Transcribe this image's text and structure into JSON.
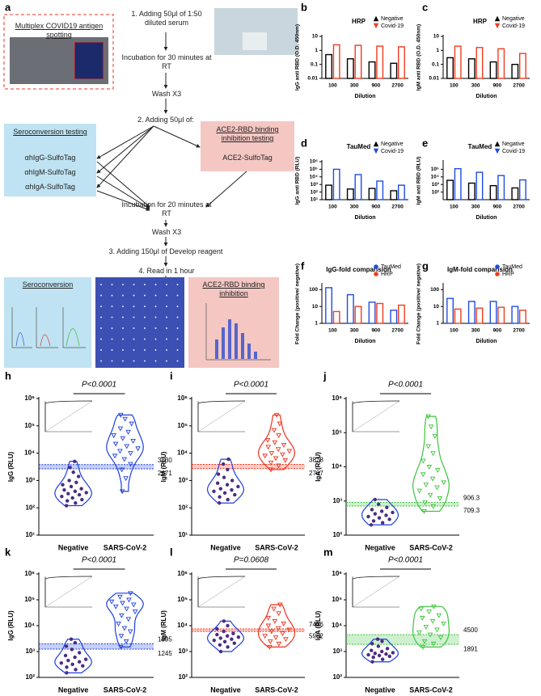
{
  "diagram": {
    "label": "a",
    "antigen_spotting": "Multiplex COVID19 antigen spotting",
    "step1": "1. Adding 50μl of 1:50 diluted serum",
    "incubation1": "Incubation for 30 minutes at RT",
    "wash1": "Wash X3",
    "step2": "2. Adding 50μl of:",
    "seroconversion_box": {
      "title": "Seroconversion testing",
      "reagents": [
        "αhIgG-SulfoTag",
        "αhIgM-SulfoTag",
        "αhIgA-SulfoTag"
      ]
    },
    "inhibition_box": {
      "title": "ACE2-RBD binding inhibition testing",
      "reagent": "ACE2-SulfoTag"
    },
    "incubation2": "Incubation for 20 minutes at RT",
    "wash2": "Wash X3",
    "step3": "3. Adding 150μl of Develop reagent",
    "step4": "4. Read in 1 hour",
    "result_seroconversion": "Seroconversion",
    "result_inhibition": "ACE2-RBD binding inhibition"
  },
  "chart_data": [
    {
      "type": "bar",
      "label": "b",
      "title": "HRP",
      "ylabel": "IgG anti RBD (O.D. 450nm)",
      "xlabel": "Dilution",
      "categories": [
        "100",
        "300",
        "900",
        "2700"
      ],
      "series": [
        {
          "name": "Negative",
          "color": "#000000",
          "values": [
            0.5,
            0.25,
            0.15,
            0.12
          ]
        },
        {
          "name": "Covid-19",
          "color": "#f03c1e",
          "values": [
            2.5,
            2.3,
            2.0,
            1.8
          ]
        }
      ],
      "log": true,
      "ylim": [
        0.01,
        10
      ],
      "yticks": [
        0.01,
        0.1,
        1,
        10
      ],
      "legend": "top-right",
      "marker": "triangle"
    },
    {
      "type": "bar",
      "label": "c",
      "title": "HRP",
      "ylabel": "IgM anti RBD (O.D. 450nm)",
      "xlabel": "Dilution",
      "categories": [
        "100",
        "300",
        "900",
        "2700"
      ],
      "series": [
        {
          "name": "Negative",
          "color": "#000000",
          "values": [
            0.3,
            0.25,
            0.15,
            0.1
          ]
        },
        {
          "name": "Covid-19",
          "color": "#f03c1e",
          "values": [
            2.0,
            1.6,
            1.3,
            0.6
          ]
        }
      ],
      "log": true,
      "ylim": [
        0.01,
        10
      ],
      "yticks": [
        0.01,
        0.1,
        1,
        10
      ],
      "legend": "top-right",
      "marker": "triangle"
    },
    {
      "type": "bar",
      "label": "d",
      "title": "TauMed",
      "ylabel": "IgG anti RBD (RLU)",
      "xlabel": "Dilution",
      "categories": [
        "100",
        "300",
        "900",
        "2700"
      ],
      "series": [
        {
          "name": "Negative",
          "color": "#000000",
          "values": [
            800,
            250,
            300,
            150
          ]
        },
        {
          "name": "Covid-19",
          "color": "#1f4de0",
          "values": [
            100000,
            20000,
            2800,
            800
          ]
        }
      ],
      "log": true,
      "ylim": [
        10,
        1000000
      ],
      "yticks": [
        {
          "value": 10,
          "label": "10¹"
        },
        {
          "value": 100,
          "label": "10²"
        },
        {
          "value": 1000,
          "label": "10³"
        },
        {
          "value": 10000,
          "label": "10⁴"
        },
        {
          "value": 100000,
          "label": "10⁵"
        },
        {
          "value": 1000000,
          "label": "10⁶"
        }
      ],
      "legend": "top-right",
      "marker": "triangle"
    },
    {
      "type": "bar",
      "label": "e",
      "title": "TauMed",
      "ylabel": "IgM anti RBD (RLU)",
      "xlabel": "Dilution",
      "categories": [
        "100",
        "300",
        "900",
        "2700"
      ],
      "series": [
        {
          "name": "Negative",
          "color": "#000000",
          "values": [
            3500,
            1500,
            700,
            350
          ]
        },
        {
          "name": "Covid-19",
          "color": "#1f4de0",
          "values": [
            120000,
            40000,
            15000,
            4000
          ]
        }
      ],
      "log": true,
      "ylim": [
        10,
        1000000
      ],
      "yticks": [
        {
          "value": 100,
          "label": "10²"
        },
        {
          "value": 1000,
          "label": "10³"
        },
        {
          "value": 10000,
          "label": "10⁴"
        },
        {
          "value": 100000,
          "label": "10⁵"
        }
      ],
      "legend": "top-right",
      "marker": "triangle"
    },
    {
      "type": "bar",
      "label": "f",
      "title": "IgG-fold comparision",
      "ylabel": "Fold Change (positive/ negative)",
      "xlabel": "Dilution",
      "categories": [
        "100",
        "300",
        "900",
        "2700"
      ],
      "series": [
        {
          "name": "TauMed",
          "color": "#1f4de0",
          "values": [
            130,
            50,
            18,
            6
          ]
        },
        {
          "name": "HRP",
          "color": "#f03c1e",
          "values": [
            5,
            10,
            15,
            12
          ]
        }
      ],
      "log": true,
      "ylim": [
        1,
        200
      ],
      "yticks": [
        1,
        10,
        100
      ],
      "legend": "top-right",
      "marker": "circle"
    },
    {
      "type": "bar",
      "label": "g",
      "title": "IgM-fold comparision",
      "ylabel": "Fold Change (positive/ negative)",
      "xlabel": "Dilution",
      "categories": [
        "100",
        "300",
        "900",
        "2700"
      ],
      "series": [
        {
          "name": "TauMed",
          "color": "#1f4de0",
          "values": [
            30,
            20,
            20,
            10
          ]
        },
        {
          "name": "HRP",
          "color": "#f03c1e",
          "values": [
            7,
            8,
            9,
            6
          ]
        }
      ],
      "log": true,
      "ylim": [
        1,
        200
      ],
      "yticks": [
        1,
        10,
        100
      ],
      "legend": "top-right",
      "marker": "circle"
    },
    {
      "type": "violin",
      "label": "h",
      "ylabel": "IgG (RLU)",
      "categories": [
        "Negative",
        "SARS-CoV-2"
      ],
      "values": [
        [
          120,
          150,
          180,
          200,
          230,
          260,
          300,
          330,
          360,
          400,
          450,
          500,
          600,
          700,
          850,
          1000,
          1400,
          2000,
          3000,
          5000
        ],
        [
          400,
          1200,
          2500,
          4000,
          6000,
          8000,
          10000,
          12000,
          15000,
          18000,
          22000,
          28000,
          35000,
          45000,
          60000,
          80000,
          120000,
          180000,
          250000
        ]
      ],
      "colors": [
        "#4b2c83",
        "#1c3fe0"
      ],
      "thresholds": [
        3830,
        2671
      ],
      "annotation": "P<0.0001",
      "log": true,
      "ylim": [
        10,
        1000000
      ],
      "yticks": [
        {
          "value": 10,
          "label": "10¹"
        },
        {
          "value": 100,
          "label": "10²"
        },
        {
          "value": 1000,
          "label": "10³"
        },
        {
          "value": 10000,
          "label": "10⁴"
        },
        {
          "value": 100000,
          "label": "10⁵"
        },
        {
          "value": 1000000,
          "label": "10⁶"
        }
      ]
    },
    {
      "type": "violin",
      "label": "i",
      "ylabel": "IgM (RLU)",
      "categories": [
        "Negative",
        "SARS-CoV-2"
      ],
      "values": [
        [
          150,
          200,
          250,
          300,
          350,
          400,
          450,
          500,
          600,
          700,
          800,
          1000,
          1300,
          1700,
          2500,
          4000,
          6000
        ],
        [
          2500,
          3500,
          4500,
          5500,
          6500,
          8000,
          9000,
          10000,
          12000,
          14000,
          17000,
          20000,
          25000,
          30000,
          45000,
          70000,
          120000,
          250000
        ]
      ],
      "colors": [
        "#4b2c83",
        "#f0311a"
      ],
      "thresholds": [
        3878,
        2707
      ],
      "annotation": "P<0.0001",
      "log": true,
      "ylim": [
        10,
        1000000
      ],
      "yticks": [
        {
          "value": 10,
          "label": "10¹"
        },
        {
          "value": 100,
          "label": "10²"
        },
        {
          "value": 1000,
          "label": "10³"
        },
        {
          "value": 10000,
          "label": "10⁴"
        },
        {
          "value": 100000,
          "label": "10⁵"
        },
        {
          "value": 1000000,
          "label": "10⁶"
        }
      ]
    },
    {
      "type": "violin",
      "label": "j",
      "ylabel": "IgA (RLU)",
      "categories": [
        "Negative",
        "SARS-CoV-2"
      ],
      "values": [
        [
          200,
          230,
          260,
          290,
          320,
          350,
          380,
          420,
          460,
          500,
          560,
          650,
          800,
          1100
        ],
        [
          500,
          700,
          900,
          1200,
          1500,
          2000,
          2500,
          3000,
          3500,
          4500,
          6000,
          8000,
          10000,
          15000,
          25000,
          40000,
          80000,
          150000,
          300000
        ]
      ],
      "colors": [
        "#4b2c83",
        "#3cc43c"
      ],
      "thresholds": [
        906.3,
        709.3
      ],
      "annotation": "P<0.0001",
      "log": true,
      "ylim": [
        100,
        1000000
      ],
      "yticks": [
        {
          "value": 100,
          "label": "10²"
        },
        {
          "value": 1000,
          "label": "10³"
        },
        {
          "value": 10000,
          "label": "10⁴"
        },
        {
          "value": 100000,
          "label": "10⁵"
        },
        {
          "value": 1000000,
          "label": "10⁶"
        }
      ]
    },
    {
      "type": "violin",
      "label": "k",
      "ylabel": "IgG (RLU)",
      "categories": [
        "Negative",
        "SARS-CoV-2"
      ],
      "values": [
        [
          150,
          200,
          250,
          280,
          320,
          360,
          400,
          450,
          500,
          600,
          700,
          900,
          1200,
          1600,
          2200,
          3000
        ],
        [
          1500,
          2500,
          4000,
          6000,
          8000,
          12000,
          18000,
          25000,
          35000,
          45000,
          55000,
          65000,
          75000,
          85000,
          100000,
          130000,
          180000
        ]
      ],
      "colors": [
        "#4b2c83",
        "#1c3fe0"
      ],
      "thresholds": [
        1995,
        1245
      ],
      "annotation": "P<0.0001",
      "log": true,
      "ylim": [
        100,
        1000000
      ],
      "yticks": [
        {
          "value": 100,
          "label": "10²"
        },
        {
          "value": 1000,
          "label": "10³"
        },
        {
          "value": 10000,
          "label": "10⁴"
        },
        {
          "value": 100000,
          "label": "10⁵"
        },
        {
          "value": 1000000,
          "label": "10⁶"
        }
      ]
    },
    {
      "type": "violin",
      "label": "l",
      "ylabel": "IgM (RLU)",
      "categories": [
        "Negative",
        "SARS-CoV-2"
      ],
      "values": [
        [
          1000,
          1500,
          1800,
          2100,
          2400,
          2700,
          3000,
          3300,
          3600,
          4000,
          4500,
          5000,
          6000,
          7500,
          10000,
          15000
        ],
        [
          1500,
          2000,
          2500,
          3000,
          3500,
          4000,
          5000,
          6000,
          7000,
          8000,
          10000,
          12000,
          15000,
          20000,
          30000,
          45000,
          65000
        ]
      ],
      "colors": [
        "#4b2c83",
        "#f0311a"
      ],
      "thresholds": [
        7466,
        5962
      ],
      "annotation": "P=0.0608",
      "log": true,
      "ylim": [
        100,
        1000000
      ],
      "yticks": [
        {
          "value": 100,
          "label": "10²"
        },
        {
          "value": 1000,
          "label": "10³"
        },
        {
          "value": 10000,
          "label": "10⁴"
        },
        {
          "value": 100000,
          "label": "10⁵"
        },
        {
          "value": 1000000,
          "label": "10⁶"
        }
      ]
    },
    {
      "type": "violin",
      "label": "m",
      "ylabel": "IgA (RLU)",
      "categories": [
        "Negative",
        "SARS-CoV-2"
      ],
      "values": [
        [
          400,
          500,
          600,
          650,
          700,
          750,
          800,
          850,
          900,
          1000,
          1100,
          1300,
          1600,
          2000,
          2500,
          3000
        ],
        [
          1500,
          2000,
          2500,
          3500,
          4500,
          5500,
          7000,
          9000,
          12000,
          15000,
          20000,
          25000,
          35000,
          45000,
          55000
        ]
      ],
      "colors": [
        "#4b2c83",
        "#3cc43c"
      ],
      "thresholds": [
        4500,
        1891
      ],
      "annotation": "P<0.0001",
      "log": true,
      "ylim": [
        100,
        1000000
      ],
      "yticks": [
        {
          "value": 100,
          "label": "10²"
        },
        {
          "value": 1000,
          "label": "10³"
        },
        {
          "value": 10000,
          "label": "10⁴"
        },
        {
          "value": 100000,
          "label": "10⁵"
        },
        {
          "value": 1000000,
          "label": "10⁶"
        }
      ]
    }
  ]
}
